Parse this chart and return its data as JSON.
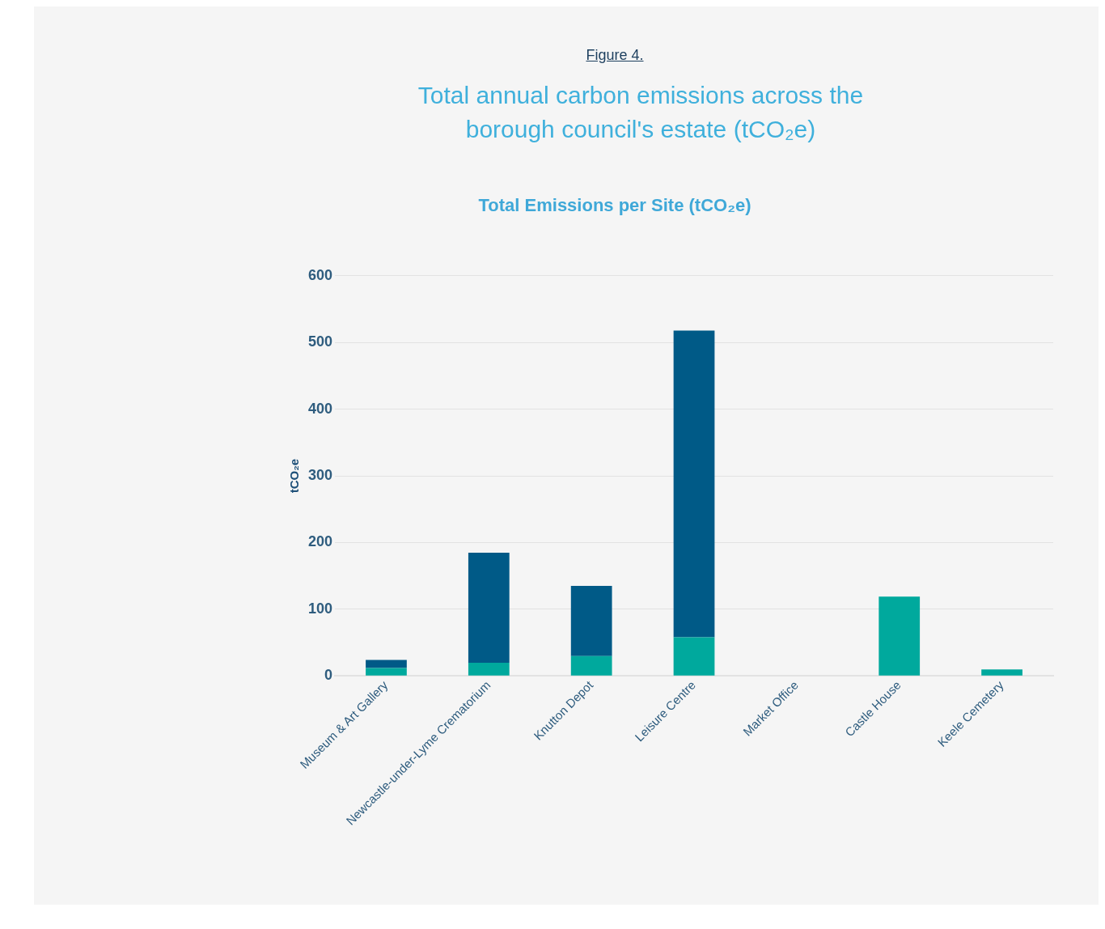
{
  "chart_data": {
    "type": "bar",
    "title": "Total annual carbon emissions across the borough council's estate (tCO₂e)",
    "subtitle": "Total Emissions per Site (tCO₂e)",
    "annotations": [
      "Figure 4."
    ],
    "ylabel": "tCO₂e",
    "categories": [
      "Museum & Art Gallery",
      "Newcastle-under-Lyme Crematorium",
      "Knutton Depot",
      "Leisure Centre",
      "Market Office",
      "Castle House",
      "Keele Cemetery"
    ],
    "stacked": true,
    "series": [
      {
        "color": "#00a99d",
        "values": [
          12,
          20,
          30,
          58,
          0,
          119,
          10
        ]
      },
      {
        "color": "#005a87",
        "values": [
          12,
          165,
          105,
          460,
          0,
          0,
          0
        ]
      }
    ],
    "ylim": [
      0,
      600
    ],
    "yticks": [
      0,
      100,
      200,
      300,
      400,
      500,
      600
    ],
    "grid": "y",
    "legend": false
  }
}
